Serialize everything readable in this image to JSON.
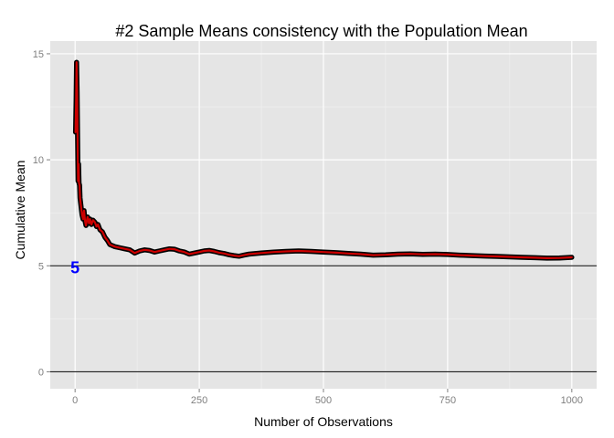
{
  "chart_data": {
    "type": "line",
    "title": "#2 Sample Means consistency with the Population Mean",
    "xlabel": "Number of Observations",
    "ylabel": "Cumulative Mean",
    "xlim": [
      -50,
      1050
    ],
    "ylim": [
      -0.8,
      15.6
    ],
    "x_ticks": [
      0,
      250,
      500,
      750,
      1000
    ],
    "x_tick_labels": [
      "0",
      "250",
      "500",
      "750",
      "1000"
    ],
    "y_ticks": [
      0,
      5,
      10,
      15
    ],
    "y_tick_labels": [
      "0",
      "5",
      "10",
      "15"
    ],
    "grid": true,
    "legend": "none",
    "colors": {
      "panel_background": "#e5e5e5",
      "grid_major": "#ffffff",
      "grid_minor": "#f2f2f2",
      "line_outline": "#000000",
      "line_fill": "#cc0000",
      "reference_line": "#000000",
      "annotation": "#0000ff"
    },
    "reference_lines": [
      {
        "axis": "y",
        "value": 5
      },
      {
        "axis": "y",
        "value": 0
      }
    ],
    "annotations": [
      {
        "text": "5",
        "x": 0,
        "y": 5
      }
    ],
    "series": [
      {
        "x": [
          1,
          2,
          3,
          4,
          5,
          6,
          7,
          8,
          9,
          10,
          12,
          14,
          16,
          18,
          20,
          22,
          25,
          28,
          30,
          33,
          36,
          40,
          43,
          46,
          50,
          55,
          60,
          65,
          70,
          80,
          90,
          100,
          110,
          120,
          130,
          140,
          150,
          160,
          170,
          180,
          190,
          200,
          210,
          220,
          230,
          240,
          250,
          260,
          270,
          280,
          290,
          300,
          310,
          320,
          330,
          340,
          350,
          375,
          400,
          425,
          450,
          475,
          500,
          525,
          550,
          575,
          600,
          625,
          650,
          675,
          700,
          725,
          750,
          775,
          800,
          825,
          850,
          875,
          900,
          925,
          950,
          975,
          1000
        ],
        "y": [
          11.3,
          12.8,
          14.6,
          13.2,
          11.1,
          9.0,
          9.8,
          8.9,
          8.8,
          8.2,
          7.8,
          7.4,
          7.2,
          7.6,
          7.1,
          6.9,
          7.3,
          7.0,
          7.2,
          6.95,
          7.15,
          7.05,
          6.85,
          6.95,
          6.7,
          6.6,
          6.35,
          6.2,
          6.0,
          5.9,
          5.85,
          5.8,
          5.75,
          5.6,
          5.7,
          5.75,
          5.72,
          5.65,
          5.7,
          5.75,
          5.8,
          5.78,
          5.7,
          5.65,
          5.55,
          5.6,
          5.65,
          5.7,
          5.72,
          5.68,
          5.62,
          5.58,
          5.52,
          5.48,
          5.45,
          5.5,
          5.55,
          5.6,
          5.65,
          5.68,
          5.7,
          5.68,
          5.65,
          5.62,
          5.58,
          5.55,
          5.5,
          5.52,
          5.55,
          5.56,
          5.54,
          5.55,
          5.53,
          5.5,
          5.48,
          5.46,
          5.44,
          5.42,
          5.4,
          5.38,
          5.36,
          5.37,
          5.4
        ]
      }
    ]
  }
}
